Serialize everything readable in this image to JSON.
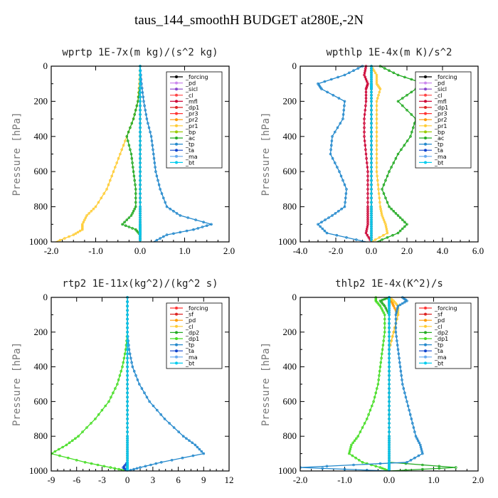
{
  "title": "taus_144_smoothH  BUDGET at280E,-2N",
  "chart_data": [
    {
      "type": "line",
      "title": "wprtp  1E-7x(m kg)/(s^2 kg)",
      "ylabel": "Pressure [hPa]",
      "xlim": [
        -2.0,
        2.0
      ],
      "xticks": [
        "-2.0",
        "-1.0",
        "0.0",
        "1.0",
        "2.0"
      ],
      "ylim": [
        1000,
        0
      ],
      "yticks": [
        "0",
        "200",
        "400",
        "600",
        "800",
        "1000"
      ],
      "y": [
        0,
        100,
        200,
        300,
        400,
        500,
        600,
        700,
        800,
        850,
        900,
        930,
        960,
        1000
      ],
      "legend": "top-right",
      "series": [
        {
          "name": "_forcing",
          "color": "#000000",
          "values": [
            0,
            0,
            0,
            0,
            0,
            0,
            0,
            0,
            0,
            0,
            0,
            0,
            0,
            0
          ]
        },
        {
          "name": "_pd",
          "color": "#cc88ee",
          "values": [
            0,
            0,
            0,
            0,
            0,
            0,
            0,
            0,
            0,
            0,
            0,
            0,
            0,
            0
          ]
        },
        {
          "name": "_sicl",
          "color": "#8844cc",
          "values": [
            0,
            0,
            0,
            0,
            0,
            0,
            0,
            0,
            0,
            0,
            0,
            0,
            0,
            0
          ]
        },
        {
          "name": "_cl",
          "color": "#ff4444",
          "values": [
            0,
            0,
            0,
            0,
            0,
            0,
            0,
            0,
            0,
            0,
            0,
            0,
            0,
            0
          ]
        },
        {
          "name": "_mfl",
          "color": "#cc0033",
          "values": [
            0,
            0,
            0,
            0,
            0,
            0,
            0,
            0,
            0,
            0,
            0,
            0,
            0,
            0
          ]
        },
        {
          "name": "_dp1",
          "color": "#dd2222",
          "values": [
            0,
            0,
            0,
            0,
            0,
            0,
            0,
            0,
            0,
            0,
            0,
            0,
            0,
            0
          ]
        },
        {
          "name": "_pr3",
          "color": "#ff3333",
          "values": [
            0,
            0,
            0,
            0,
            0,
            0,
            0,
            0,
            0,
            0,
            0,
            0,
            0,
            0
          ]
        },
        {
          "name": "_pr2",
          "color": "#ff9900",
          "values": [
            0,
            0,
            0,
            0,
            0,
            0,
            0,
            0,
            0,
            0,
            0,
            0,
            0,
            0
          ]
        },
        {
          "name": "_pr1",
          "color": "#ffcc33",
          "values": [
            0,
            -0.02,
            -0.05,
            -0.15,
            -0.3,
            -0.45,
            -0.6,
            -0.75,
            -1.0,
            -1.2,
            -1.3,
            -1.3,
            -1.5,
            -1.9
          ]
        },
        {
          "name": "_bp",
          "color": "#99cc00",
          "values": [
            0,
            0,
            0,
            0,
            0,
            0,
            0,
            0,
            0,
            0,
            0,
            0,
            0,
            0
          ]
        },
        {
          "name": "_ac",
          "color": "#22aa22",
          "values": [
            0,
            0,
            -0.05,
            -0.15,
            -0.3,
            -0.2,
            -0.15,
            -0.1,
            -0.1,
            -0.2,
            -0.4,
            -0.1,
            0,
            0
          ]
        },
        {
          "name": "_tp",
          "color": "#2288cc",
          "values": [
            0,
            0.03,
            0.08,
            0.15,
            0.25,
            0.3,
            0.35,
            0.45,
            0.6,
            0.9,
            1.6,
            1.2,
            0.6,
            0.3
          ]
        },
        {
          "name": "_ta",
          "color": "#1144cc",
          "values": [
            0,
            0,
            0,
            0,
            0,
            0,
            0,
            0,
            0,
            0,
            0,
            0,
            0,
            0
          ]
        },
        {
          "name": "_ma",
          "color": "#66aaee",
          "values": [
            0,
            0,
            0,
            0,
            0,
            0,
            0,
            0,
            0,
            0,
            0,
            0,
            0,
            0
          ]
        },
        {
          "name": "_bt",
          "color": "#00ccee",
          "values": [
            0,
            0,
            0,
            0,
            0,
            0,
            0,
            0,
            0,
            0,
            0,
            0,
            0,
            0
          ]
        }
      ]
    },
    {
      "type": "line",
      "title": "wpthlp  1E-4x(m K)/s^2",
      "ylabel": "Pressure [hPa]",
      "xlim": [
        -4.0,
        6.0
      ],
      "xticks": [
        "-4.0",
        "-2.0",
        "0.0",
        "2.0",
        "4.0",
        "6.0"
      ],
      "ylim": [
        1000,
        0
      ],
      "yticks": [
        "0",
        "200",
        "400",
        "600",
        "800",
        "1000"
      ],
      "y": [
        0,
        50,
        100,
        130,
        200,
        300,
        400,
        500,
        600,
        700,
        800,
        850,
        900,
        950,
        1000
      ],
      "legend": "top-right",
      "series": [
        {
          "name": "_forcing",
          "color": "#000000",
          "values": [
            0,
            0,
            0,
            0,
            0,
            0,
            0,
            0,
            0,
            0,
            0,
            0,
            0,
            0,
            0
          ]
        },
        {
          "name": "_pd",
          "color": "#cc88ee",
          "values": [
            0,
            0,
            0,
            0,
            0,
            0,
            0,
            0,
            0,
            0,
            0,
            0,
            0,
            0,
            0
          ]
        },
        {
          "name": "_sicl",
          "color": "#8844cc",
          "values": [
            0,
            0,
            0,
            0,
            0,
            0,
            0,
            0,
            0,
            0,
            0,
            0,
            0,
            0,
            0
          ]
        },
        {
          "name": "_cl",
          "color": "#ff4444",
          "values": [
            0,
            0,
            0,
            0,
            0,
            0,
            0,
            0,
            0,
            0,
            0,
            0,
            0,
            0,
            0
          ]
        },
        {
          "name": "_mfl",
          "color": "#cc0033",
          "values": [
            -0.3,
            -0.4,
            -0.2,
            -0.3,
            -0.3,
            -0.4,
            -0.4,
            -0.3,
            -0.2,
            -0.2,
            -0.2,
            -0.2,
            -0.2,
            -0.3,
            0
          ]
        },
        {
          "name": "_dp1",
          "color": "#dd2222",
          "values": [
            0,
            0,
            0,
            0,
            0,
            0,
            0,
            0,
            0,
            0,
            0,
            0,
            0,
            0,
            0
          ]
        },
        {
          "name": "_pr3",
          "color": "#ff3333",
          "values": [
            0,
            0,
            0,
            0,
            0,
            0,
            0,
            0,
            0,
            0,
            0,
            0,
            0,
            0,
            0
          ]
        },
        {
          "name": "_pr2",
          "color": "#ff9900",
          "values": [
            0,
            0,
            0,
            0,
            0,
            0,
            0,
            0,
            0,
            0,
            0,
            0,
            0,
            0,
            0
          ]
        },
        {
          "name": "_pr1",
          "color": "#ffcc33",
          "values": [
            0,
            0.3,
            0.3,
            0.5,
            0.3,
            0.3,
            0.3,
            0.3,
            0.3,
            0.4,
            0.5,
            0.6,
            0.8,
            0.9,
            0
          ]
        },
        {
          "name": "_bp",
          "color": "#99cc00",
          "values": [
            0,
            0,
            0,
            0,
            0,
            0,
            0,
            0,
            0,
            0,
            0,
            0,
            0,
            0,
            0
          ]
        },
        {
          "name": "_ac",
          "color": "#22aa22",
          "values": [
            0.5,
            1.5,
            3.0,
            2.5,
            1.5,
            2.5,
            2.2,
            1.5,
            1.0,
            0.6,
            1.0,
            1.5,
            2.0,
            1.5,
            0.3
          ]
        },
        {
          "name": "_tp",
          "color": "#2288cc",
          "values": [
            -0.5,
            -1.5,
            -3.0,
            -2.8,
            -1.5,
            -1.6,
            -2.2,
            -2.3,
            -1.8,
            -1.4,
            -1.5,
            -2.2,
            -3.0,
            -2.5,
            -0.3
          ]
        },
        {
          "name": "_ta",
          "color": "#1144cc",
          "values": [
            0,
            0,
            0,
            0,
            0,
            0,
            0,
            0,
            0,
            0,
            0,
            0,
            0,
            0,
            0
          ]
        },
        {
          "name": "_ma",
          "color": "#66aaee",
          "values": [
            0,
            0,
            0,
            0,
            0,
            0,
            0,
            0,
            0,
            0,
            0,
            0,
            0,
            0,
            0
          ]
        },
        {
          "name": "_bt",
          "color": "#00ccee",
          "values": [
            0,
            0,
            0,
            0,
            0,
            0,
            0,
            0,
            0,
            0,
            0,
            0,
            0,
            0,
            0
          ]
        }
      ]
    },
    {
      "type": "line",
      "title": "rtp2  1E-11x(kg^2)/(kg^2 s)",
      "ylabel": "Pressure [hPa]",
      "xlim": [
        -9,
        12
      ],
      "xticks": [
        "-9",
        "-6",
        "-3",
        "0",
        "3",
        "6",
        "9",
        "12"
      ],
      "ylim": [
        1000,
        0
      ],
      "yticks": [
        "0",
        "200",
        "400",
        "600",
        "800",
        "1000"
      ],
      "y": [
        0,
        100,
        200,
        300,
        400,
        500,
        600,
        700,
        800,
        850,
        900,
        950,
        980,
        1000
      ],
      "legend": "top-right",
      "series": [
        {
          "name": "_forcing",
          "color": "#ff3333",
          "values": [
            0,
            0,
            0,
            0,
            0,
            0,
            0,
            0,
            0,
            0,
            0,
            0,
            0,
            0
          ]
        },
        {
          "name": "_sf",
          "color": "#dd2222",
          "values": [
            0,
            0,
            0,
            0,
            0,
            0,
            0,
            0,
            0,
            0,
            0,
            0,
            0,
            0
          ]
        },
        {
          "name": "_pd",
          "color": "#ff9900",
          "values": [
            0,
            0,
            0,
            0,
            0,
            0,
            0,
            0,
            0,
            0,
            0,
            0,
            0,
            0
          ]
        },
        {
          "name": "_cl",
          "color": "#ffcc33",
          "values": [
            0,
            0,
            0,
            0,
            0,
            0,
            0,
            0,
            0,
            0,
            0,
            0,
            0,
            0
          ]
        },
        {
          "name": "_dp2",
          "color": "#22aa22",
          "values": [
            0,
            0,
            0,
            0,
            0,
            0,
            0,
            0,
            0,
            0,
            0,
            0,
            0,
            0
          ]
        },
        {
          "name": "_dp1",
          "color": "#44dd22",
          "values": [
            0,
            0,
            0,
            -0.2,
            -0.6,
            -1.2,
            -2.2,
            -3.8,
            -5.8,
            -7.2,
            -9,
            -5,
            -2,
            0
          ]
        },
        {
          "name": "_tp",
          "color": "#2288cc",
          "values": [
            0,
            0,
            0,
            0.2,
            0.6,
            1.4,
            2.6,
            4.4,
            6.6,
            8.0,
            9.0,
            4.0,
            1.5,
            0
          ]
        },
        {
          "name": "_ta",
          "color": "#1144cc",
          "values": [
            0,
            0,
            0,
            0,
            0,
            0,
            0,
            0,
            0,
            0,
            0,
            0,
            -0.5,
            0
          ]
        },
        {
          "name": "_ma",
          "color": "#66aaee",
          "values": [
            0,
            0,
            0,
            0,
            0,
            0,
            0,
            0,
            0,
            0,
            0,
            0,
            0,
            0
          ]
        },
        {
          "name": "_bt",
          "color": "#00ccee",
          "values": [
            0,
            0,
            0,
            0,
            0,
            0,
            0,
            0,
            0,
            0,
            0,
            0,
            0,
            0
          ]
        }
      ]
    },
    {
      "type": "line",
      "title": "thlp2  1E-4x(K^2)/s",
      "ylabel": "Pressure [hPa]",
      "xlim": [
        -2.0,
        2.0
      ],
      "xticks": [
        "-2.0",
        "-1.0",
        "0.0",
        "1.0",
        "2.0"
      ],
      "ylim": [
        1000,
        0
      ],
      "yticks": [
        "0",
        "200",
        "400",
        "600",
        "800",
        "1000"
      ],
      "y": [
        0,
        20,
        50,
        100,
        200,
        300,
        400,
        500,
        600,
        700,
        800,
        850,
        900,
        950,
        980,
        1000
      ],
      "legend": "top-right",
      "series": [
        {
          "name": "_forcing",
          "color": "#ff3333",
          "values": [
            0,
            0,
            0,
            0,
            0,
            0,
            0,
            0,
            0,
            0,
            0,
            0,
            0,
            0,
            0,
            0
          ]
        },
        {
          "name": "_sf",
          "color": "#dd2222",
          "values": [
            0,
            0,
            0,
            0,
            0,
            0,
            0,
            0,
            0,
            0,
            0,
            0,
            0,
            0,
            0,
            0
          ]
        },
        {
          "name": "_pd",
          "color": "#ff9900",
          "values": [
            0,
            0.05,
            0.1,
            0.2,
            0.1,
            0,
            0,
            0,
            0,
            0,
            0,
            0,
            0,
            0,
            0,
            0
          ]
        },
        {
          "name": "_cl",
          "color": "#ffcc33",
          "values": [
            0,
            0.1,
            0.2,
            0.2,
            0.1,
            0,
            0,
            0,
            0,
            0,
            0,
            0,
            0,
            0,
            0,
            0
          ]
        },
        {
          "name": "_dp2",
          "color": "#22aa22",
          "values": [
            0,
            -0.2,
            -0.1,
            0,
            0,
            0,
            0,
            0,
            0,
            0,
            0,
            0,
            0,
            0,
            1.5,
            0
          ]
        },
        {
          "name": "_dp1",
          "color": "#44dd22",
          "values": [
            -0.3,
            -0.3,
            -0.2,
            -0.1,
            -0.1,
            -0.15,
            -0.2,
            -0.25,
            -0.35,
            -0.5,
            -0.7,
            -0.85,
            -0.9,
            -0.6,
            -0.2,
            0
          ]
        },
        {
          "name": "_tp",
          "color": "#2288cc",
          "values": [
            0.3,
            0.4,
            0.2,
            0.15,
            0.15,
            0.2,
            0.25,
            0.3,
            0.4,
            0.5,
            0.6,
            0.7,
            0.75,
            0.4,
            -2.0,
            0
          ]
        },
        {
          "name": "_ta",
          "color": "#1144cc",
          "values": [
            0,
            0,
            0,
            0,
            0,
            0,
            0,
            0,
            0,
            0,
            0,
            0,
            0,
            0,
            0,
            0
          ]
        },
        {
          "name": "_ma",
          "color": "#66aaee",
          "values": [
            0,
            0,
            0,
            0,
            0,
            0,
            0,
            0,
            0,
            0,
            0,
            0,
            0,
            0,
            0,
            0
          ]
        },
        {
          "name": "_bt",
          "color": "#00ccee",
          "values": [
            0,
            0,
            0,
            0,
            0,
            0,
            0,
            0,
            0,
            0,
            0,
            0,
            0,
            0,
            0,
            0
          ]
        }
      ]
    }
  ]
}
